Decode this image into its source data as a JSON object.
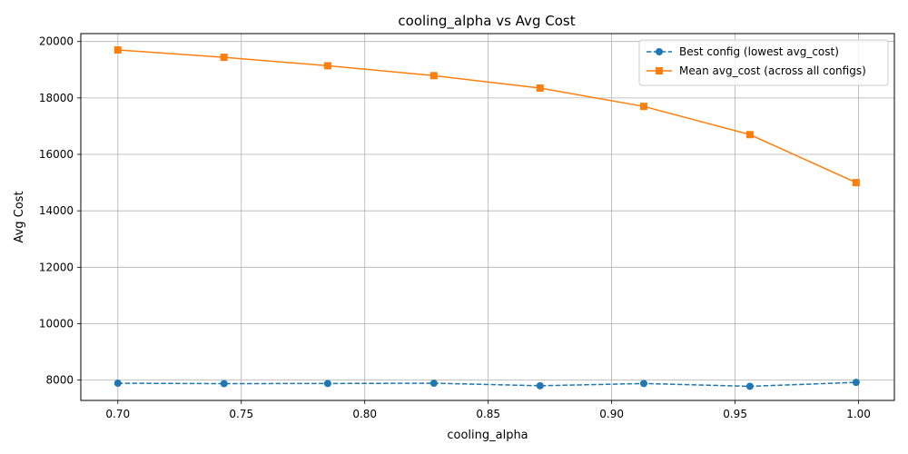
{
  "chart_data": {
    "type": "line",
    "title": "cooling_alpha vs Avg Cost",
    "xlabel": "cooling_alpha",
    "ylabel": "Avg Cost",
    "xlim": [
      0.685,
      1.0145
    ],
    "ylim": [
      7280,
      20280
    ],
    "xticks": [
      0.7,
      0.75,
      0.8,
      0.85,
      0.9,
      0.95,
      1.0
    ],
    "xtick_labels": [
      "0.70",
      "0.75",
      "0.80",
      "0.85",
      "0.90",
      "0.95",
      "1.00"
    ],
    "yticks": [
      8000,
      10000,
      12000,
      14000,
      16000,
      18000,
      20000
    ],
    "ytick_labels": [
      "8000",
      "10000",
      "12000",
      "14000",
      "16000",
      "18000",
      "20000"
    ],
    "grid": true,
    "legend_position": "top-right",
    "x": [
      0.7,
      0.743,
      0.785,
      0.828,
      0.871,
      0.913,
      0.956,
      0.999
    ],
    "series": [
      {
        "name": "Best config (lowest avg_cost)",
        "color": "#1f77b4",
        "marker": "circle",
        "linestyle": "dashed",
        "values": [
          7890,
          7875,
          7880,
          7890,
          7800,
          7880,
          7780,
          7920
        ]
      },
      {
        "name": "Mean avg_cost (across all configs)",
        "color": "#ff7f0e",
        "marker": "square",
        "linestyle": "solid",
        "values": [
          19700,
          19440,
          19140,
          18790,
          18350,
          17700,
          16700,
          15000
        ]
      }
    ]
  }
}
